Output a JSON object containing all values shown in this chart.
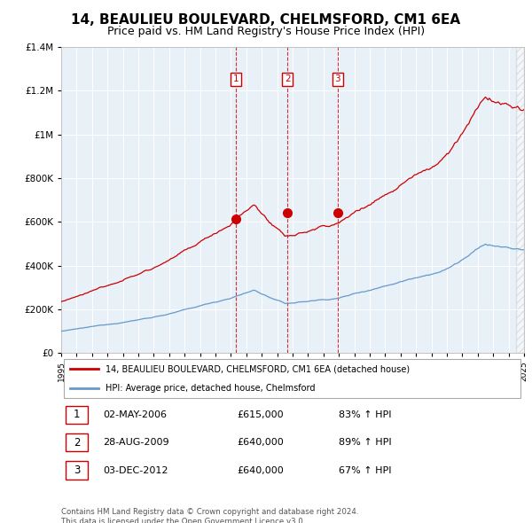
{
  "title": "14, BEAULIEU BOULEVARD, CHELMSFORD, CM1 6EA",
  "subtitle": "Price paid vs. HM Land Registry's House Price Index (HPI)",
  "ylim": [
    0,
    1400000
  ],
  "yticks": [
    0,
    200000,
    400000,
    600000,
    800000,
    1000000,
    1200000,
    1400000
  ],
  "ytick_labels": [
    "£0",
    "£200K",
    "£400K",
    "£600K",
    "£800K",
    "£1M",
    "£1.2M",
    "£1.4M"
  ],
  "hpi_color": "#6699cc",
  "price_color": "#cc0000",
  "vline_color": "#cc0000",
  "grid_color": "#cccccc",
  "plot_bg_color": "#e8f0f8",
  "background_color": "#ffffff",
  "sale_dates": [
    2006.33,
    2009.66,
    2012.92
  ],
  "sale_prices": [
    615000,
    640000,
    640000
  ],
  "sale_labels": [
    "1",
    "2",
    "3"
  ],
  "legend_price_label": "14, BEAULIEU BOULEVARD, CHELMSFORD, CM1 6EA (detached house)",
  "legend_hpi_label": "HPI: Average price, detached house, Chelmsford",
  "table_rows": [
    [
      "1",
      "02-MAY-2006",
      "£615,000",
      "83% ↑ HPI"
    ],
    [
      "2",
      "28-AUG-2009",
      "£640,000",
      "89% ↑ HPI"
    ],
    [
      "3",
      "03-DEC-2012",
      "£640,000",
      "67% ↑ HPI"
    ]
  ],
  "footnote": "Contains HM Land Registry data © Crown copyright and database right 2024.\nThis data is licensed under the Open Government Licence v3.0.",
  "xmin": 1995,
  "xmax": 2025,
  "title_fontsize": 11,
  "subtitle_fontsize": 9
}
